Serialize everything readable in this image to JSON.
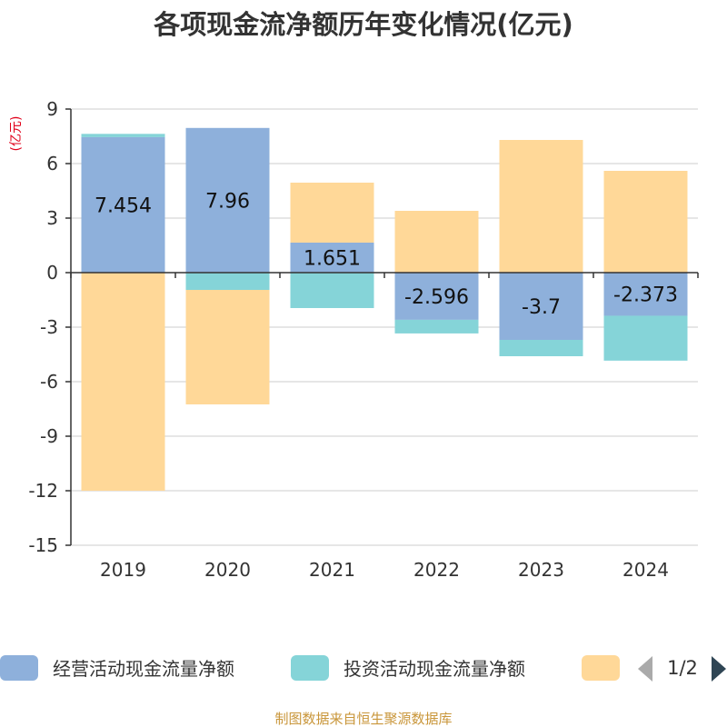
{
  "chart_data": {
    "type": "bar",
    "stacked": true,
    "title": "各项现金流净额历年变化情况(亿元)",
    "unit_label": "(亿元)",
    "categories": [
      "2019",
      "2020",
      "2021",
      "2022",
      "2023",
      "2024"
    ],
    "y_ticks": [
      "9",
      "6",
      "3",
      "0",
      "-3",
      "-6",
      "-9",
      "-12",
      "-15"
    ],
    "ylim": [
      -15,
      9
    ],
    "grid": true,
    "legend_position": "bottom",
    "series": [
      {
        "name": "经营活动现金流量净额",
        "color": "#8eb0db",
        "values": [
          7.454,
          7.96,
          1.651,
          -2.596,
          -3.7,
          -2.373
        ],
        "labels": [
          "7.454",
          "7.96",
          "1.651",
          "-2.596",
          "-3.7",
          "-2.373"
        ]
      },
      {
        "name": "投资活动现金流量净额",
        "color": "#85d4d8",
        "values": [
          0.18,
          -0.95,
          -1.95,
          -0.75,
          -0.9,
          -2.47
        ]
      },
      {
        "color": "#ffd898",
        "values": [
          -12.0,
          -6.3,
          3.3,
          3.4,
          7.3,
          5.6
        ]
      }
    ]
  },
  "legend": {
    "page_indicator": "1/2",
    "prev_icon": "triangle-left-icon",
    "next_icon": "triangle-right-icon"
  },
  "footer": {
    "source": "制图数据来自恒生聚源数据库"
  }
}
